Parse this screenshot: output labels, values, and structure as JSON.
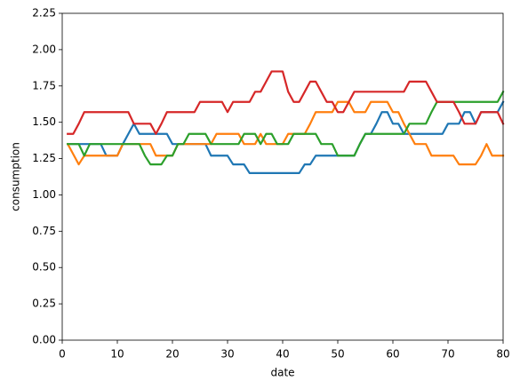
{
  "chart_data": {
    "type": "line",
    "xlabel": "date",
    "ylabel": "consumption",
    "x": [
      1,
      2,
      3,
      4,
      5,
      6,
      7,
      8,
      9,
      10,
      11,
      12,
      13,
      14,
      15,
      16,
      17,
      18,
      19,
      20,
      21,
      22,
      23,
      24,
      25,
      26,
      27,
      28,
      29,
      30,
      31,
      32,
      33,
      34,
      35,
      36,
      37,
      38,
      39,
      40,
      41,
      42,
      43,
      44,
      45,
      46,
      47,
      48,
      49,
      50,
      51,
      52,
      53,
      54,
      55,
      56,
      57,
      58,
      59,
      60,
      61,
      62,
      63,
      64,
      65,
      66,
      67,
      68,
      69,
      70,
      71,
      72,
      73,
      74,
      75,
      76,
      77,
      78,
      79,
      80
    ],
    "series": [
      {
        "color": "#1f77b4",
        "values": [
          1.35,
          1.35,
          1.35,
          1.35,
          1.35,
          1.35,
          1.35,
          1.27,
          1.27,
          1.27,
          1.35,
          1.42,
          1.49,
          1.42,
          1.42,
          1.42,
          1.42,
          1.42,
          1.42,
          1.35,
          1.35,
          1.35,
          1.35,
          1.35,
          1.35,
          1.35,
          1.27,
          1.27,
          1.27,
          1.27,
          1.21,
          1.21,
          1.21,
          1.15,
          1.15,
          1.15,
          1.15,
          1.15,
          1.15,
          1.15,
          1.15,
          1.15,
          1.15,
          1.21,
          1.21,
          1.27,
          1.27,
          1.27,
          1.27,
          1.27,
          1.27,
          1.27,
          1.27,
          1.35,
          1.42,
          1.42,
          1.49,
          1.57,
          1.57,
          1.49,
          1.49,
          1.42,
          1.42,
          1.42,
          1.42,
          1.42,
          1.42,
          1.42,
          1.42,
          1.49,
          1.49,
          1.49,
          1.57,
          1.57,
          1.49,
          1.57,
          1.57,
          1.57,
          1.57,
          1.64
        ]
      },
      {
        "color": "#ff7f0e",
        "values": [
          1.35,
          1.28,
          1.21,
          1.27,
          1.27,
          1.27,
          1.27,
          1.27,
          1.27,
          1.27,
          1.35,
          1.35,
          1.35,
          1.35,
          1.35,
          1.35,
          1.27,
          1.27,
          1.27,
          1.27,
          1.35,
          1.35,
          1.35,
          1.35,
          1.35,
          1.35,
          1.35,
          1.42,
          1.42,
          1.42,
          1.42,
          1.42,
          1.35,
          1.35,
          1.35,
          1.42,
          1.35,
          1.35,
          1.35,
          1.35,
          1.42,
          1.42,
          1.42,
          1.42,
          1.49,
          1.57,
          1.57,
          1.57,
          1.57,
          1.64,
          1.64,
          1.64,
          1.57,
          1.57,
          1.57,
          1.64,
          1.64,
          1.64,
          1.64,
          1.57,
          1.57,
          1.49,
          1.42,
          1.35,
          1.35,
          1.35,
          1.27,
          1.27,
          1.27,
          1.27,
          1.27,
          1.21,
          1.21,
          1.21,
          1.21,
          1.27,
          1.35,
          1.27,
          1.27,
          1.27
        ]
      },
      {
        "color": "#2ca02c",
        "values": [
          1.35,
          1.35,
          1.35,
          1.27,
          1.35,
          1.35,
          1.35,
          1.35,
          1.35,
          1.35,
          1.35,
          1.35,
          1.35,
          1.35,
          1.27,
          1.21,
          1.21,
          1.21,
          1.27,
          1.27,
          1.35,
          1.35,
          1.42,
          1.42,
          1.42,
          1.42,
          1.35,
          1.35,
          1.35,
          1.35,
          1.35,
          1.35,
          1.42,
          1.42,
          1.42,
          1.35,
          1.42,
          1.42,
          1.35,
          1.35,
          1.35,
          1.42,
          1.42,
          1.42,
          1.42,
          1.42,
          1.35,
          1.35,
          1.35,
          1.27,
          1.27,
          1.27,
          1.27,
          1.35,
          1.42,
          1.42,
          1.42,
          1.42,
          1.42,
          1.42,
          1.42,
          1.42,
          1.49,
          1.49,
          1.49,
          1.49,
          1.57,
          1.64,
          1.64,
          1.64,
          1.64,
          1.64,
          1.64,
          1.64,
          1.64,
          1.64,
          1.64,
          1.64,
          1.64,
          1.71
        ]
      },
      {
        "color": "#d62728",
        "values": [
          1.42,
          1.42,
          1.49,
          1.57,
          1.57,
          1.57,
          1.57,
          1.57,
          1.57,
          1.57,
          1.57,
          1.57,
          1.49,
          1.49,
          1.49,
          1.49,
          1.42,
          1.49,
          1.57,
          1.57,
          1.57,
          1.57,
          1.57,
          1.57,
          1.64,
          1.64,
          1.64,
          1.64,
          1.64,
          1.57,
          1.64,
          1.64,
          1.64,
          1.64,
          1.71,
          1.71,
          1.78,
          1.85,
          1.85,
          1.85,
          1.71,
          1.64,
          1.64,
          1.71,
          1.78,
          1.78,
          1.71,
          1.64,
          1.64,
          1.57,
          1.57,
          1.64,
          1.71,
          1.71,
          1.71,
          1.71,
          1.71,
          1.71,
          1.71,
          1.71,
          1.71,
          1.71,
          1.78,
          1.78,
          1.78,
          1.78,
          1.71,
          1.64,
          1.64,
          1.64,
          1.64,
          1.57,
          1.49,
          1.49,
          1.49,
          1.57,
          1.57,
          1.57,
          1.57,
          1.49
        ]
      }
    ],
    "xlim": [
      0,
      80
    ],
    "xticks": [
      0,
      10,
      20,
      30,
      40,
      50,
      60,
      70,
      80
    ],
    "ylim": [
      0,
      2.25
    ],
    "yticks": [
      {
        "value": 0,
        "label": "0.00"
      },
      {
        "value": 0.25,
        "label": "0.25"
      },
      {
        "value": 0.5,
        "label": "0.50"
      },
      {
        "value": 0.75,
        "label": "0.75"
      },
      {
        "value": 1,
        "label": "1.00"
      },
      {
        "value": 1.25,
        "label": "1.25"
      },
      {
        "value": 1.5,
        "label": "1.50"
      },
      {
        "value": 1.75,
        "label": "1.75"
      },
      {
        "value": 2,
        "label": "2.00"
      },
      {
        "value": 2.25,
        "label": "2.25"
      }
    ],
    "grid": false
  }
}
